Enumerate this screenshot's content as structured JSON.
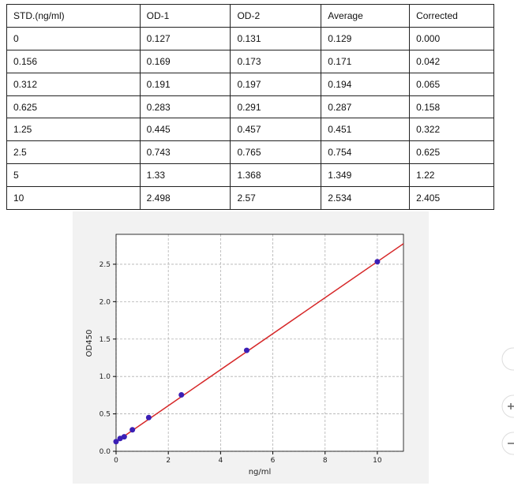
{
  "table": {
    "header": [
      "STD.(ng/ml)",
      "OD-1",
      "OD-2",
      "Average",
      "Corrected"
    ],
    "rows": [
      [
        "0",
        "0.127",
        "0.131",
        "0.129",
        "0.000"
      ],
      [
        "0.156",
        "0.169",
        "0.173",
        "0.171",
        "0.042"
      ],
      [
        "0.312",
        "0.191",
        "0.197",
        "0.194",
        "0.065"
      ],
      [
        "0.625",
        "0.283",
        "0.291",
        "0.287",
        "0.158"
      ],
      [
        "1.25",
        "0.445",
        "0.457",
        "0.451",
        "0.322"
      ],
      [
        "2.5",
        "0.743",
        "0.765",
        "0.754",
        "0.625"
      ],
      [
        "5",
        "1.33",
        "1.368",
        "1.349",
        "1.22"
      ],
      [
        "10",
        "2.498",
        "2.57",
        "2.534",
        "2.405"
      ]
    ]
  },
  "chart_data": {
    "type": "scatter",
    "x_label": "ng/ml",
    "y_label": "OD450",
    "xlim": [
      0,
      11
    ],
    "ylim": [
      0,
      2.9
    ],
    "xticks": [
      0,
      2,
      4,
      6,
      8,
      10
    ],
    "yticks": [
      {
        "value": 0,
        "label": "0.0"
      },
      0.5,
      {
        "value": 1,
        "label": "1.0"
      },
      1.5,
      {
        "value": 2,
        "label": "2.0"
      },
      2.5
    ],
    "grid": true,
    "series": [
      {
        "mark": "point",
        "color": "#3b1fb5",
        "x": [
          0,
          0.156,
          0.312,
          0.625,
          1.25,
          2.5,
          5,
          10
        ],
        "values": [
          0.129,
          0.171,
          0.194,
          0.287,
          0.451,
          0.754,
          1.349,
          2.534
        ]
      },
      {
        "mark": "line",
        "color": "#d62728",
        "x": [
          0,
          11
        ],
        "values": [
          0.128,
          2.775
        ]
      }
    ]
  }
}
